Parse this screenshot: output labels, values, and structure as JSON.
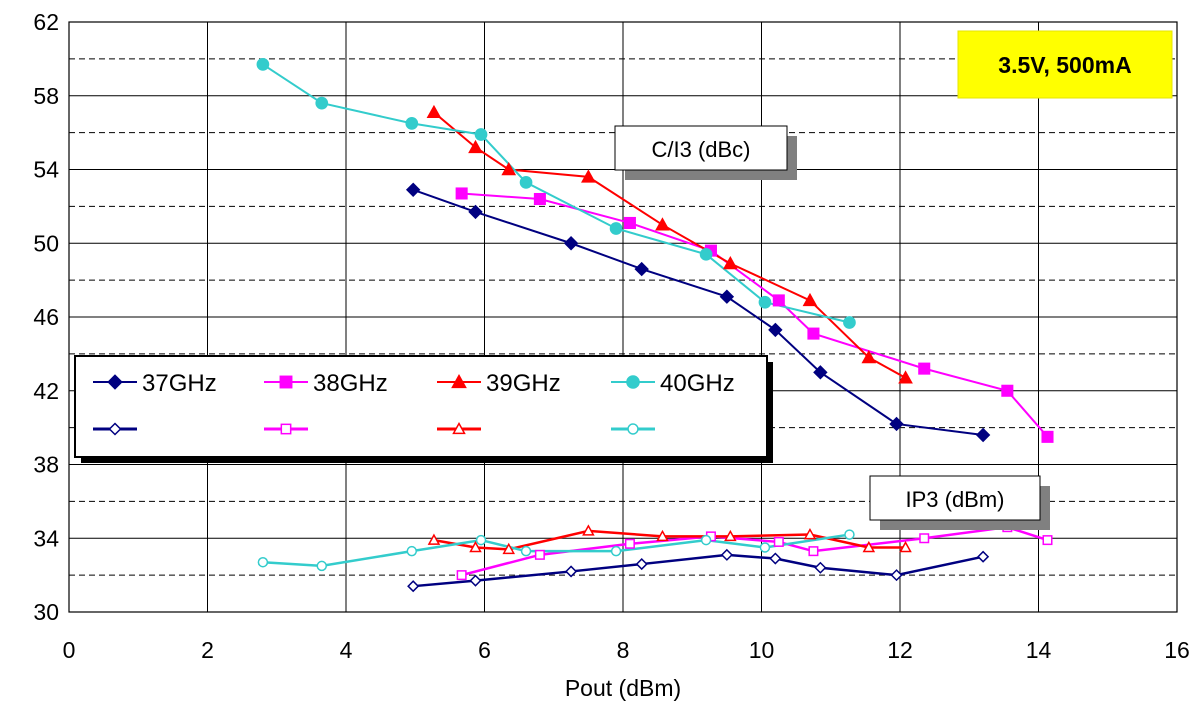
{
  "chart_data": {
    "type": "line",
    "xlabel": "Pout (dBm)",
    "xlim": [
      0,
      16
    ],
    "ylim": [
      30,
      62
    ],
    "xticks": [
      0,
      2,
      4,
      6,
      8,
      10,
      12,
      14,
      16
    ],
    "yticks": [
      30,
      34,
      38,
      42,
      46,
      50,
      54,
      58,
      62
    ],
    "grid": {
      "major_solid": true,
      "minor_dashed_y": [
        32,
        36,
        40,
        44,
        48,
        52,
        56,
        60
      ]
    },
    "legend_position": "middle-left",
    "annotations": [
      {
        "text": "3.5V, 500mA",
        "style": "yellow-box"
      },
      {
        "text": "C/I3 (dBc)",
        "style": "shadow-box"
      },
      {
        "text": "IP3 (dBm)",
        "style": "shadow-box"
      }
    ],
    "series": [
      {
        "name": "37GHz",
        "group": "C/I3",
        "color": "#000080",
        "marker": "diamond",
        "filled": true,
        "x": [
          4.97,
          5.87,
          7.25,
          8.27,
          9.5,
          10.2,
          10.85,
          11.95,
          13.2
        ],
        "y": [
          52.9,
          51.7,
          50.0,
          48.6,
          47.1,
          45.3,
          43.0,
          40.2,
          39.6
        ]
      },
      {
        "name": "38GHz",
        "group": "C/I3",
        "color": "#ff00ff",
        "marker": "square",
        "filled": true,
        "x": [
          5.67,
          6.8,
          8.1,
          9.27,
          10.25,
          10.75,
          12.35,
          13.55,
          14.13
        ],
        "y": [
          52.7,
          52.4,
          51.1,
          49.6,
          46.9,
          45.1,
          43.2,
          42.0,
          39.5
        ]
      },
      {
        "name": "39GHz",
        "group": "C/I3",
        "color": "#ff0000",
        "marker": "triangle",
        "filled": true,
        "x": [
          5.27,
          5.87,
          6.35,
          7.5,
          8.57,
          9.55,
          10.7,
          11.55,
          12.08
        ],
        "y": [
          57.1,
          55.2,
          54.0,
          53.6,
          51.0,
          48.9,
          46.9,
          43.8,
          42.7
        ]
      },
      {
        "name": "40GHz",
        "group": "C/I3",
        "color": "#33cccc",
        "marker": "circle",
        "filled": true,
        "x": [
          2.8,
          3.65,
          4.95,
          5.95,
          6.6,
          7.9,
          9.2,
          10.05,
          11.27
        ],
        "y": [
          59.7,
          57.6,
          56.5,
          55.9,
          53.3,
          50.8,
          49.4,
          46.8,
          45.7
        ]
      },
      {
        "name": "",
        "group": "IP3",
        "color": "#000080",
        "marker": "diamond",
        "filled": false,
        "x": [
          4.97,
          5.87,
          7.25,
          8.27,
          9.5,
          10.2,
          10.85,
          11.95,
          13.2
        ],
        "y": [
          31.4,
          31.7,
          32.2,
          32.6,
          33.1,
          32.9,
          32.4,
          32.0,
          33.0
        ]
      },
      {
        "name": "",
        "group": "IP3",
        "color": "#ff00ff",
        "marker": "square",
        "filled": false,
        "x": [
          5.67,
          6.8,
          8.1,
          9.27,
          10.25,
          10.75,
          12.35,
          13.55,
          14.13
        ],
        "y": [
          32.0,
          33.1,
          33.7,
          34.1,
          33.8,
          33.3,
          34.0,
          34.6,
          33.9
        ]
      },
      {
        "name": "",
        "group": "IP3",
        "color": "#ff0000",
        "marker": "triangle",
        "filled": false,
        "x": [
          5.27,
          5.87,
          6.35,
          7.5,
          8.57,
          9.55,
          10.7,
          11.55,
          12.08
        ],
        "y": [
          33.9,
          33.5,
          33.4,
          34.4,
          34.1,
          34.1,
          34.2,
          33.5,
          33.5
        ]
      },
      {
        "name": "",
        "group": "IP3",
        "color": "#33cccc",
        "marker": "circle",
        "filled": false,
        "x": [
          2.8,
          3.65,
          4.95,
          5.95,
          6.6,
          7.9,
          9.2,
          10.05,
          11.27
        ],
        "y": [
          32.7,
          32.5,
          33.3,
          33.9,
          33.3,
          33.3,
          33.9,
          33.5,
          34.2
        ]
      }
    ]
  }
}
